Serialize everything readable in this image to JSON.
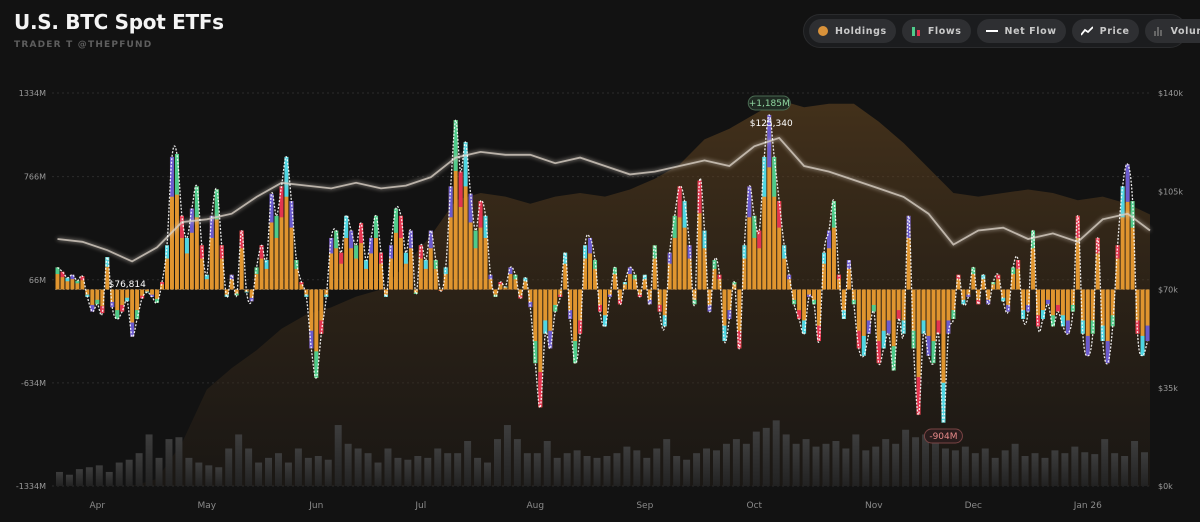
{
  "header": {
    "title": "U.S. BTC Spot ETFs",
    "subtitle": "TRADER T @THEPFUND"
  },
  "legend": [
    {
      "label": "Holdings",
      "icon": "holdings-dot-icon",
      "color": "#d9923a"
    },
    {
      "label": "Flows",
      "icon": "flows-bars-icon",
      "color": "#4ecb8b"
    },
    {
      "label": "Net Flow",
      "icon": "net-flow-dash-icon",
      "color": "#ffffff"
    },
    {
      "label": "Price",
      "icon": "price-line-icon",
      "color": "#ffffff"
    },
    {
      "label": "Volume",
      "icon": "volume-bars-icon",
      "color": "#666666"
    }
  ],
  "colors": {
    "background": "#121212",
    "flows_base": "#e0952f",
    "flows_segments": [
      "#4ecb8b",
      "#e3344f",
      "#4fd6e3",
      "#6a5acd"
    ],
    "price": "#d8cfc4",
    "holdings": "#7a5226",
    "volume": "#3a3a3a",
    "positive_badge": "#8fd6a0",
    "negative_badge": "#e88a8a"
  },
  "chart_data": {
    "type": "bar",
    "title": "U.S. BTC Spot ETFs",
    "left_axis": {
      "unit": "M",
      "ylim": [
        -1334,
        1334
      ],
      "tick_values": [
        1334,
        766,
        66,
        -634,
        -1334
      ],
      "tick_labels": [
        "1334M",
        "766M",
        "66M",
        "-634M",
        "-1334M"
      ]
    },
    "right_axis": {
      "unit": "$k",
      "ylim": [
        0,
        140
      ],
      "tick_values": [
        140,
        105,
        70,
        35,
        0
      ],
      "tick_labels": [
        "$140k",
        "$105k",
        "$70k",
        "$35k",
        "$0k"
      ]
    },
    "x_ticks": [
      {
        "label": "Apr",
        "index": 8
      },
      {
        "label": "May",
        "index": 30
      },
      {
        "label": "Jun",
        "index": 52
      },
      {
        "label": "Jul",
        "index": 73
      },
      {
        "label": "Aug",
        "index": 96
      },
      {
        "label": "Sep",
        "index": 118
      },
      {
        "label": "Oct",
        "index": 140
      },
      {
        "label": "Nov",
        "index": 164
      },
      {
        "label": "Dec",
        "index": 184
      },
      {
        "label": "Jan 26",
        "index": 207
      }
    ],
    "net_flow_musd": [
      150,
      120,
      80,
      100,
      60,
      90,
      -50,
      -150,
      -100,
      -160,
      220,
      -120,
      -200,
      -150,
      -80,
      -320,
      -200,
      -60,
      -20,
      -50,
      -90,
      50,
      300,
      900,
      920,
      500,
      350,
      550,
      700,
      300,
      100,
      500,
      680,
      300,
      -50,
      100,
      -40,
      400,
      -20,
      -80,
      150,
      300,
      200,
      650,
      500,
      700,
      900,
      600,
      200,
      50,
      -50,
      -400,
      -600,
      -300,
      -50,
      350,
      400,
      250,
      500,
      400,
      300,
      450,
      200,
      350,
      500,
      250,
      -50,
      300,
      550,
      500,
      250,
      400,
      -30,
      300,
      200,
      400,
      200,
      -10,
      150,
      700,
      1150,
      800,
      1000,
      650,
      400,
      600,
      500,
      100,
      -50,
      50,
      20,
      150,
      100,
      -60,
      80,
      -120,
      -500,
      -800,
      -300,
      -400,
      -150,
      -50,
      250,
      -200,
      -500,
      -300,
      300,
      350,
      200,
      -150,
      -250,
      -50,
      150,
      -100,
      50,
      150,
      100,
      -50,
      100,
      -100,
      300,
      -150,
      -250,
      250,
      500,
      700,
      600,
      300,
      -100,
      740,
      400,
      -150,
      200,
      100,
      -350,
      -200,
      50,
      -400,
      300,
      700,
      500,
      400,
      900,
      1185,
      900,
      600,
      300,
      100,
      -100,
      -200,
      -300,
      -50,
      -100,
      -350,
      250,
      400,
      600,
      100,
      -200,
      200,
      -100,
      -400,
      -450,
      -300,
      -150,
      -500,
      -400,
      -300,
      -550,
      -200,
      -300,
      500,
      -400,
      -850,
      -300,
      -450,
      -500,
      -300,
      -904,
      -300,
      -200,
      100,
      -100,
      -50,
      150,
      -100,
      100,
      -100,
      50,
      100,
      -80,
      -150,
      150,
      200,
      -200,
      -150,
      400,
      -250,
      -200,
      -100,
      -250,
      -150,
      -250,
      -300,
      -150,
      500,
      -300,
      -450,
      -300,
      350,
      -350,
      -500,
      -250,
      300,
      700,
      850,
      600,
      -300,
      -450,
      -350
    ],
    "price_kusd_every5": [
      88,
      87,
      84,
      80,
      85,
      94,
      95,
      97,
      103,
      108,
      107,
      106,
      108,
      106,
      107,
      110,
      117,
      119,
      118,
      118,
      115,
      117,
      114,
      111,
      112,
      114,
      116,
      114,
      121,
      124,
      114,
      112,
      109,
      106,
      103,
      97,
      86,
      91,
      92,
      88,
      90,
      87,
      95,
      97,
      91
    ],
    "holdings_busd_every5": {
      "ylim": [
        60,
        170
      ],
      "values": [
        60,
        60,
        60,
        60,
        62,
        72,
        87,
        93,
        98,
        104,
        108,
        110,
        113,
        115,
        122,
        130,
        140,
        142,
        141,
        139,
        141,
        142,
        141,
        143,
        146,
        150,
        157,
        160,
        164,
        168,
        166,
        167,
        167,
        162,
        156,
        149,
        142,
        141,
        142,
        143,
        142,
        140,
        141,
        139,
        136
      ]
    },
    "volume_busd_every2": {
      "ylim": [
        0,
        8
      ],
      "values": [
        1.5,
        1.2,
        1.8,
        2,
        2.2,
        1.5,
        2.5,
        2.8,
        3.5,
        5.5,
        3,
        5,
        5.2,
        3,
        2.5,
        2.2,
        2,
        4,
        5.5,
        4,
        2.5,
        3,
        3.5,
        2.5,
        4,
        3,
        3.2,
        2.8,
        6.5,
        4.5,
        4,
        3.5,
        2.5,
        4,
        3,
        2.8,
        3.2,
        3,
        4,
        3.5,
        3.5,
        4.8,
        3,
        2.5,
        5,
        6.5,
        5,
        3.5,
        3.5,
        4.8,
        3,
        3.5,
        3.8,
        3.2,
        3,
        3.2,
        3.5,
        4.2,
        3.8,
        3,
        4,
        5,
        3.2,
        2.8,
        3.5,
        4,
        3.8,
        4.5,
        5,
        4.5,
        5.8,
        6.2,
        7,
        5.5,
        4.5,
        5,
        4.2,
        4.5,
        4.8,
        4,
        5.5,
        3.8,
        4.2,
        5,
        4.5,
        6,
        5.2,
        5.5,
        5.8,
        4,
        3.8,
        4.2,
        3.5,
        4,
        3,
        3.8,
        4.5,
        3.2,
        3.5,
        3,
        3.8,
        3.5,
        4.2,
        3.6,
        3.4,
        5,
        3.5,
        3.2,
        4.8,
        3.6
      ]
    },
    "annotations": {
      "max_flow": {
        "label": "+1,185M",
        "index": 143
      },
      "max_price": {
        "label": "$125,340",
        "index": 143
      },
      "min_price": {
        "label": "$76,814",
        "index": 11
      },
      "min_flow": {
        "label": "-904M",
        "index": 178
      }
    }
  }
}
